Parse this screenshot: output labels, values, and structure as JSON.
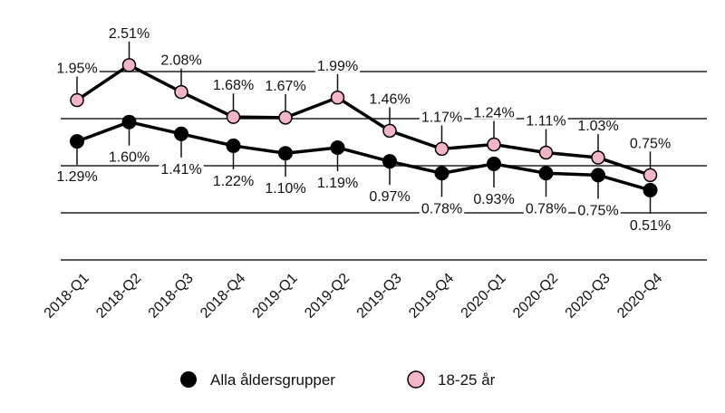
{
  "chart_data": {
    "type": "line",
    "title": "",
    "xlabel": "",
    "ylabel": "",
    "categories": [
      "2018-Q1",
      "2018-Q2",
      "2018-Q3",
      "2018-Q4",
      "2019-Q1",
      "2019-Q2",
      "2019-Q3",
      "2019-Q4",
      "2020-Q1",
      "2020-Q2",
      "2020-Q3",
      "2020-Q4"
    ],
    "series": [
      {
        "name": "Alla åldersgrupper",
        "color": "#000000",
        "values": [
          1.29,
          1.6,
          1.41,
          1.22,
          1.1,
          1.19,
          0.97,
          0.78,
          0.93,
          0.78,
          0.75,
          0.51
        ],
        "labels": [
          "1.29%",
          "1.60%",
          "1.41%",
          "1.22%",
          "1.10%",
          "1.19%",
          "0.97%",
          "0.78%",
          "0.93%",
          "0.78%",
          "0.75%",
          "0.51%"
        ]
      },
      {
        "name": "18-25 år",
        "color": "#f4b6c7",
        "values": [
          1.95,
          2.51,
          2.08,
          1.68,
          1.67,
          1.99,
          1.46,
          1.17,
          1.24,
          1.11,
          1.03,
          0.75
        ],
        "labels": [
          "1.95%",
          "2.51%",
          "2.08%",
          "1.68%",
          "1.67%",
          "1.99%",
          "1.46%",
          "1.17%",
          "1.24%",
          "1.11%",
          "1.03%",
          "0.75%"
        ]
      }
    ],
    "grid": true,
    "legend": "bottom-center"
  }
}
